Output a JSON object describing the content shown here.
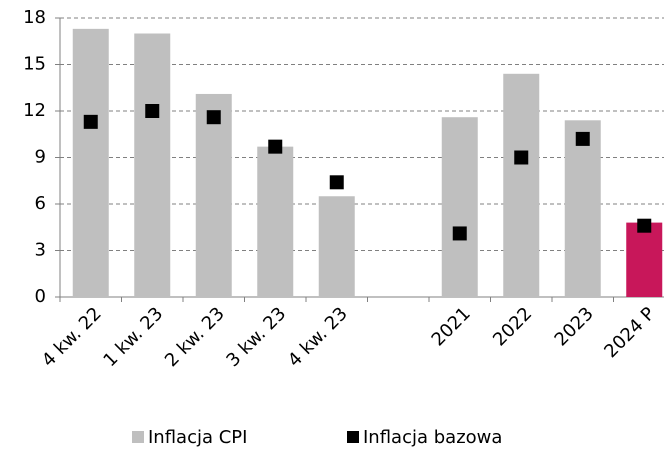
{
  "chart_data": {
    "type": "bar",
    "categories": [
      "4 kw. 22",
      "1 kw. 23",
      "2 kw. 23",
      "3 kw. 23",
      "4 kw. 23",
      null,
      "2021",
      "2022",
      "2023",
      "2024 P"
    ],
    "series": [
      {
        "name": "Inflacja CPI",
        "color": "#bfbfbf",
        "type": "bar",
        "values": [
          17.3,
          17.0,
          13.1,
          9.7,
          6.5,
          null,
          11.6,
          14.4,
          11.4,
          4.8
        ],
        "highlight": {
          "index": 9,
          "color": "#c8175a"
        }
      },
      {
        "name": "Inflacja bazowa",
        "color": "#000000",
        "type": "marker",
        "values": [
          11.3,
          12.0,
          11.6,
          9.7,
          7.4,
          null,
          4.1,
          9.0,
          10.2,
          4.6
        ]
      }
    ],
    "ylim": [
      0,
      18
    ],
    "yticks": [
      0,
      3,
      6,
      9,
      12,
      15,
      18
    ],
    "grid": true,
    "legend": "bottom"
  }
}
